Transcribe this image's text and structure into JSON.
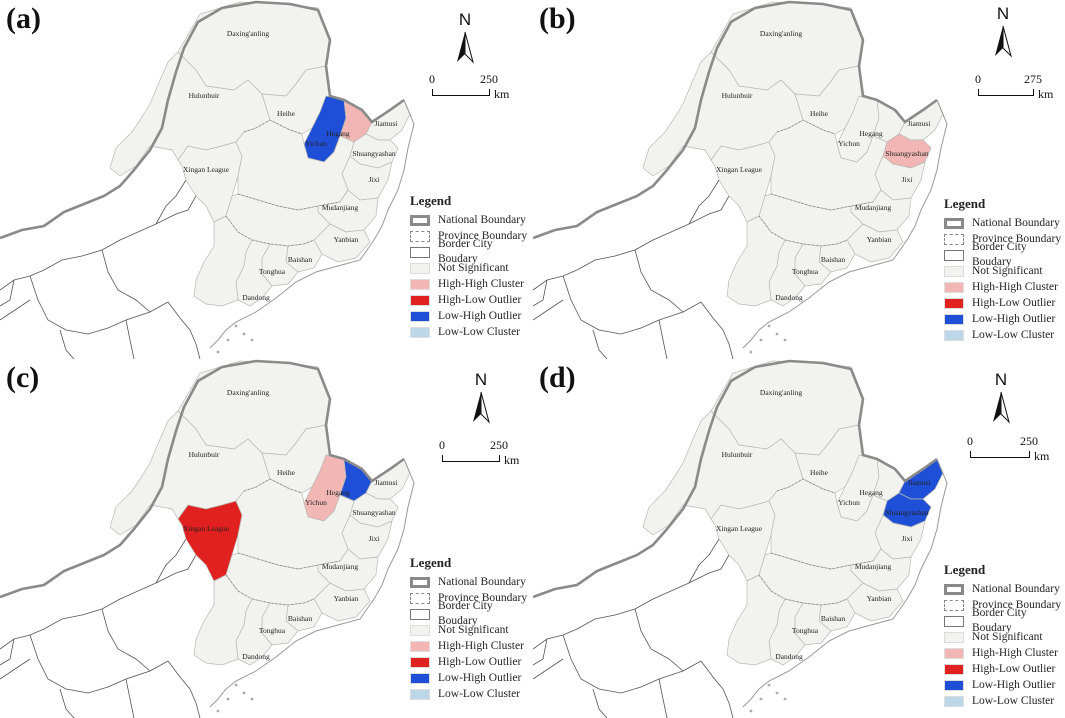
{
  "panels": [
    {
      "label": "(a)",
      "scale": {
        "zero": "0",
        "max": "250",
        "unit": "km"
      },
      "clusters": {
        "yichun": "low_high",
        "hegang": "high_high"
      }
    },
    {
      "label": "(b)",
      "scale": {
        "zero": "0",
        "max": "275",
        "unit": "km"
      },
      "clusters": {
        "shuangyashan": "high_high"
      }
    },
    {
      "label": "(c)",
      "scale": {
        "zero": "0",
        "max": "250",
        "unit": "km"
      },
      "clusters": {
        "xingan": "high_low",
        "yichun": "high_high",
        "hegang": "low_high"
      }
    },
    {
      "label": "(d)",
      "scale": {
        "zero": "0",
        "max": "250",
        "unit": "km"
      },
      "clusters": {
        "jiamusi": "low_high",
        "shuangyashan": "low_high"
      }
    }
  ],
  "north_label": "N",
  "cities": {
    "daxinganling": "Daxing'anling",
    "hulunbuir": "Hulunbuir",
    "heihe": "Heihe",
    "yichun": "Yichun",
    "hegang": "Hegang",
    "jiamusi": "Jiamusi",
    "shuangyashan": "Shuangyashan",
    "jixi": "Jixi",
    "xingan": "Xingan League",
    "mudanjiang": "Mudanjiang",
    "yanbian": "Yanbian",
    "baishan": "Baishan",
    "tonghua": "Tonghua",
    "dandong": "Dandong"
  },
  "legend": {
    "title": "Legend",
    "items": [
      {
        "key": "national",
        "label": "National Boundary"
      },
      {
        "key": "province",
        "label": "Province Boundary"
      },
      {
        "key": "border_city",
        "label": "Border City Boudary"
      },
      {
        "key": "not_significant",
        "label": "Not Significant",
        "color": "#f2f2ee"
      },
      {
        "key": "high_high",
        "label": "High-High Cluster",
        "color": "#f2b6b4"
      },
      {
        "key": "high_low",
        "label": "High-Low Outlier",
        "color": "#e0211f"
      },
      {
        "key": "low_high",
        "label": "Low-High Outlier",
        "color": "#1f4fd6"
      },
      {
        "key": "low_low",
        "label": "Low-Low Cluster",
        "color": "#bcd8e8"
      }
    ]
  }
}
